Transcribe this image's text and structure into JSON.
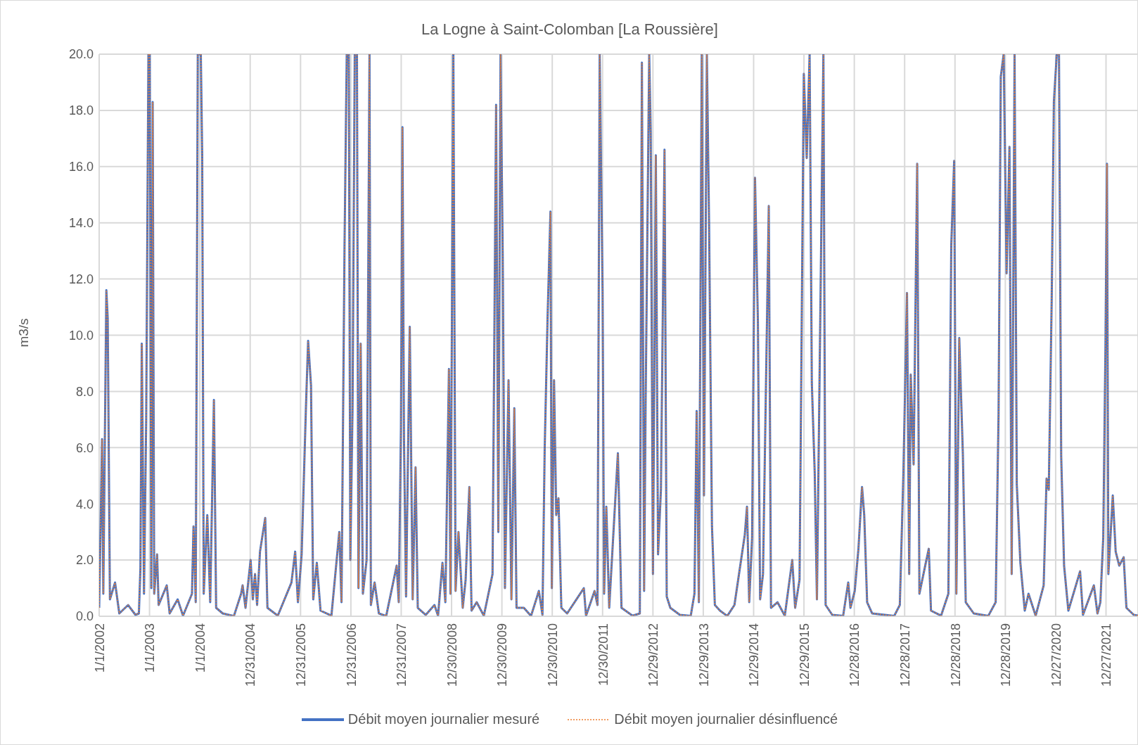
{
  "chart_data": {
    "type": "line",
    "title": "La Logne à Saint-Colomban [La Roussière]",
    "ylabel": "m3/s",
    "x": [
      "2002-01-01",
      "2002-01-22",
      "2002-01-31",
      "2002-02-22",
      "2002-03-04",
      "2002-03-20",
      "2002-04-26",
      "2002-05-27",
      "2002-07-30",
      "2002-09-21",
      "2002-10-16",
      "2002-10-27",
      "2002-11-06",
      "2002-11-22",
      "2002-12-08",
      "2002-12-24",
      "2003-01-03",
      "2003-01-14",
      "2003-01-24",
      "2003-02-04",
      "2003-02-25",
      "2003-03-08",
      "2003-05-06",
      "2003-05-27",
      "2003-07-24",
      "2003-09-01",
      "2003-11-05",
      "2003-11-16",
      "2003-12-02",
      "2003-12-17",
      "2004-01-08",
      "2004-01-18",
      "2004-01-29",
      "2004-02-24",
      "2004-03-16",
      "2004-04-12",
      "2004-04-28",
      "2004-06-15",
      "2004-09-04",
      "2004-10-26",
      "2004-11-06",
      "2004-11-27",
      "2005-01-03",
      "2005-01-19",
      "2005-02-04",
      "2005-02-19",
      "2005-03-12",
      "2005-04-19",
      "2005-05-05",
      "2005-07-19",
      "2005-10-26",
      "2005-11-22",
      "2005-12-12",
      "2006-01-08",
      "2006-02-08",
      "2006-02-24",
      "2006-03-17",
      "2006-04-02",
      "2006-04-28",
      "2006-05-25",
      "2006-08-12",
      "2006-10-08",
      "2006-10-24",
      "2006-11-15",
      "2006-12-01",
      "2006-12-16",
      "2006-12-27",
      "2007-01-12",
      "2007-01-28",
      "2007-02-13",
      "2007-02-24",
      "2007-03-12",
      "2007-03-28",
      "2007-04-24",
      "2007-05-15",
      "2007-05-25",
      "2007-06-21",
      "2007-07-22",
      "2007-09-13",
      "2007-11-28",
      "2007-12-13",
      "2007-12-29",
      "2008-01-09",
      "2008-01-20",
      "2008-02-04",
      "2008-03-02",
      "2008-03-23",
      "2008-04-13",
      "2008-04-29",
      "2008-06-26",
      "2008-08-28",
      "2008-09-23",
      "2008-10-25",
      "2008-11-15",
      "2008-12-11",
      "2008-12-22",
      "2009-01-12",
      "2009-01-28",
      "2009-02-18",
      "2009-03-21",
      "2009-04-11",
      "2009-05-08",
      "2009-05-24",
      "2009-06-30",
      "2009-08-21",
      "2009-10-23",
      "2009-11-18",
      "2009-12-04",
      "2009-12-20",
      "2010-01-05",
      "2010-01-21",
      "2010-02-16",
      "2010-03-09",
      "2010-03-30",
      "2010-04-15",
      "2010-06-07",
      "2010-07-29",
      "2010-09-24",
      "2010-10-20",
      "2010-11-05",
      "2010-11-26",
      "2010-12-17",
      "2010-12-27",
      "2011-01-12",
      "2011-01-28",
      "2011-02-13",
      "2011-03-06",
      "2011-04-17",
      "2011-08-16",
      "2011-09-01",
      "2011-11-02",
      "2011-11-23",
      "2011-12-09",
      "2011-12-30",
      "2012-01-10",
      "2012-01-26",
      "2012-02-16",
      "2012-04-19",
      "2012-04-30",
      "2012-05-15",
      "2012-08-03",
      "2012-09-25",
      "2012-10-10",
      "2012-10-26",
      "2012-11-06",
      "2012-12-02",
      "2012-12-13",
      "2012-12-29",
      "2013-01-19",
      "2013-02-04",
      "2013-02-25",
      "2013-03-23",
      "2013-04-08",
      "2013-05-04",
      "2013-07-12",
      "2013-09-29",
      "2013-10-26",
      "2013-11-11",
      "2013-11-27",
      "2013-12-18",
      "2014-01-03",
      "2014-01-24",
      "2014-02-09",
      "2014-03-02",
      "2014-03-23",
      "2014-04-29",
      "2014-06-21",
      "2014-08-12",
      "2014-10-26",
      "2014-11-11",
      "2014-11-27",
      "2014-12-18",
      "2015-01-08",
      "2015-01-29",
      "2015-02-14",
      "2015-03-07",
      "2015-04-18",
      "2015-05-04",
      "2015-06-20",
      "2015-08-12",
      "2015-10-05",
      "2015-10-26",
      "2015-11-27",
      "2015-12-28",
      "2016-01-18",
      "2016-02-08",
      "2016-02-24",
      "2016-03-16",
      "2016-04-01",
      "2016-05-18",
      "2016-06-03",
      "2016-07-21",
      "2016-10-08",
      "2016-11-14",
      "2016-11-30",
      "2016-12-31",
      "2017-01-27",
      "2017-02-22",
      "2017-03-10",
      "2017-03-31",
      "2017-05-07",
      "2017-10-13",
      "2017-11-23",
      "2017-12-19",
      "2018-01-14",
      "2018-01-30",
      "2018-02-10",
      "2018-03-03",
      "2018-03-29",
      "2018-04-14",
      "2018-05-26",
      "2018-06-21",
      "2018-07-07",
      "2018-09-18",
      "2018-11-10",
      "2018-12-01",
      "2018-12-22",
      "2019-01-07",
      "2019-01-28",
      "2019-02-23",
      "2019-03-16",
      "2019-05-13",
      "2019-08-26",
      "2019-10-19",
      "2019-11-09",
      "2019-11-25",
      "2019-12-16",
      "2020-01-06",
      "2020-01-27",
      "2020-02-12",
      "2020-03-04",
      "2020-03-20",
      "2020-04-15",
      "2020-05-17",
      "2020-06-13",
      "2020-08-04",
      "2020-10-01",
      "2020-10-22",
      "2020-11-07",
      "2020-11-28",
      "2020-12-14",
      "2021-01-04",
      "2021-01-20",
      "2021-02-05",
      "2021-02-26",
      "2021-03-29",
      "2021-06-22",
      "2021-07-13",
      "2021-09-30",
      "2021-10-26",
      "2021-11-16",
      "2021-12-07",
      "2021-12-23",
      "2022-01-03",
      "2022-01-13",
      "2022-02-14",
      "2022-03-07",
      "2022-04-02",
      "2022-05-04",
      "2022-05-24",
      "2022-07-16",
      "2022-08-21"
    ],
    "series": [
      {
        "name": "Débit moyen journalier mesuré",
        "color": "#4472c4",
        "line_style": "solid",
        "values": [
          0.3,
          6.3,
          0.8,
          11.6,
          10.6,
          0.6,
          1.2,
          0.1,
          0.4,
          0.05,
          0.1,
          1.7,
          9.7,
          0.8,
          7.0,
          20,
          20,
          1.0,
          18.3,
          0.8,
          2.2,
          0.4,
          1.1,
          0.1,
          0.6,
          0.02,
          0.8,
          3.2,
          0.5,
          20,
          20,
          16.4,
          0.8,
          3.6,
          0.5,
          7.7,
          0.3,
          0.1,
          0.01,
          0.8,
          1.1,
          0.3,
          2.0,
          0.6,
          1.5,
          0.4,
          2.3,
          3.5,
          0.3,
          0.02,
          1.2,
          2.3,
          0.5,
          2.2,
          7.4,
          9.8,
          8.2,
          0.6,
          1.9,
          0.2,
          0.02,
          3.0,
          0.5,
          13.2,
          20,
          20,
          2.0,
          7.4,
          20,
          20,
          1.0,
          9.7,
          0.8,
          2.0,
          20,
          0.4,
          1.2,
          0.1,
          0.01,
          1.8,
          0.5,
          6.7,
          17.4,
          6.3,
          0.7,
          10.3,
          0.6,
          5.3,
          0.3,
          0.05,
          0.4,
          0.02,
          1.9,
          0.5,
          8.8,
          0.8,
          20,
          0.9,
          3.0,
          0.3,
          1.3,
          4.6,
          0.2,
          0.5,
          0.02,
          1.5,
          18.2,
          3.0,
          20,
          12.8,
          1.0,
          8.4,
          0.6,
          7.4,
          0.3,
          0.3,
          0.01,
          0.9,
          0.05,
          5.9,
          10.6,
          14.4,
          1.0,
          8.4,
          3.6,
          4.2,
          0.3,
          0.1,
          1.0,
          0.02,
          0.9,
          0.4,
          20,
          11.6,
          0.8,
          3.9,
          0.3,
          5.8,
          3.5,
          0.3,
          0.02,
          0.1,
          19.7,
          0.9,
          7.6,
          20,
          17.2,
          1.5,
          16.4,
          2.2,
          4.5,
          16.6,
          0.7,
          0.3,
          0.05,
          0.01,
          0.8,
          7.3,
          0.5,
          20,
          4.3,
          20,
          14.0,
          3.2,
          0.4,
          0.2,
          0.01,
          0.4,
          2.9,
          3.9,
          0.5,
          2.8,
          15.6,
          10.5,
          0.6,
          1.5,
          14.6,
          0.3,
          0.5,
          0.02,
          2.0,
          0.3,
          1.3,
          19.3,
          16.3,
          20,
          8.3,
          5.1,
          0.6,
          20,
          0.4,
          0.05,
          0.01,
          1.2,
          0.3,
          0.9,
          2.4,
          4.6,
          3.6,
          0.5,
          0.1,
          0.01,
          0.4,
          5.1,
          11.5,
          1.5,
          8.6,
          5.4,
          16.1,
          0.8,
          1.8,
          2.4,
          0.2,
          0.02,
          0.8,
          13.2,
          16.2,
          0.8,
          9.9,
          5.8,
          0.5,
          0.1,
          0.01,
          0.5,
          7.2,
          19.2,
          20,
          12.2,
          16.7,
          1.5,
          20,
          4.7,
          1.9,
          0.2,
          0.8,
          0.02,
          1.1,
          4.9,
          4.5,
          11.2,
          18.3,
          20,
          20,
          5.7,
          1.8,
          0.2,
          1.6,
          0.05,
          1.1,
          0.1,
          0.5,
          2.8,
          9.6,
          16.1,
          1.5,
          4.3,
          2.3,
          1.8,
          2.1,
          0.3,
          0.05,
          0.02
        ]
      },
      {
        "name": "Débit moyen journalier désinfluencé",
        "color": "#ed7d31",
        "line_style": "dotted",
        "values": [
          0.3,
          6.3,
          0.8,
          11.6,
          10.6,
          0.6,
          1.2,
          0.1,
          0.4,
          0.05,
          0.1,
          1.7,
          9.7,
          0.8,
          7.0,
          20,
          20,
          1.0,
          18.3,
          0.8,
          2.2,
          0.4,
          1.1,
          0.1,
          0.6,
          0.02,
          0.8,
          3.2,
          0.5,
          20,
          20,
          16.4,
          0.8,
          3.6,
          0.5,
          7.7,
          0.3,
          0.1,
          0.01,
          0.8,
          1.1,
          0.3,
          2.0,
          0.6,
          1.5,
          0.4,
          2.3,
          3.5,
          0.3,
          0.02,
          1.2,
          2.3,
          0.5,
          2.2,
          7.4,
          9.8,
          8.2,
          0.6,
          1.9,
          0.2,
          0.02,
          3.0,
          0.5,
          13.2,
          20,
          20,
          2.0,
          7.4,
          20,
          20,
          1.0,
          9.7,
          0.8,
          2.0,
          20,
          0.4,
          1.2,
          0.1,
          0.01,
          1.8,
          0.5,
          6.7,
          17.4,
          6.3,
          0.7,
          10.3,
          0.6,
          5.3,
          0.3,
          0.05,
          0.4,
          0.02,
          1.9,
          0.5,
          8.8,
          0.8,
          20,
          0.9,
          3.0,
          0.3,
          1.3,
          4.6,
          0.2,
          0.5,
          0.02,
          1.5,
          18.2,
          3.0,
          20,
          12.8,
          1.0,
          8.4,
          0.6,
          7.4,
          0.3,
          0.3,
          0.01,
          0.9,
          0.05,
          5.9,
          10.6,
          14.4,
          1.0,
          8.4,
          3.6,
          4.2,
          0.3,
          0.1,
          1.0,
          0.02,
          0.9,
          0.4,
          20,
          11.6,
          0.8,
          3.9,
          0.3,
          5.8,
          3.5,
          0.3,
          0.02,
          0.1,
          19.7,
          0.9,
          7.6,
          20,
          17.2,
          1.5,
          16.4,
          2.2,
          4.5,
          16.6,
          0.7,
          0.3,
          0.05,
          0.01,
          0.8,
          7.3,
          0.5,
          20,
          4.3,
          20,
          14.0,
          3.2,
          0.4,
          0.2,
          0.01,
          0.4,
          2.9,
          3.9,
          0.5,
          2.8,
          15.6,
          10.5,
          0.6,
          1.5,
          14.6,
          0.3,
          0.5,
          0.02,
          2.0,
          0.3,
          1.3,
          19.3,
          16.3,
          20,
          8.3,
          5.1,
          0.6,
          20,
          0.4,
          0.05,
          0.01,
          1.2,
          0.3,
          0.9,
          2.4,
          4.6,
          3.6,
          0.5,
          0.1,
          0.01,
          0.4,
          5.1,
          11.5,
          1.5,
          8.6,
          5.4,
          16.1,
          0.8,
          1.8,
          2.4,
          0.2,
          0.02,
          0.8,
          13.2,
          16.2,
          0.8,
          9.9,
          5.8,
          0.5,
          0.1,
          0.01,
          0.5,
          7.2,
          19.2,
          20,
          12.2,
          16.7,
          1.5,
          20,
          4.7,
          1.9,
          0.2,
          0.8,
          0.02,
          1.1,
          4.9,
          4.5,
          11.2,
          18.3,
          20,
          20,
          5.7,
          1.8,
          0.2,
          1.6,
          0.05,
          1.1,
          0.1,
          0.5,
          2.8,
          9.6,
          16.1,
          1.5,
          4.3,
          2.3,
          1.8,
          2.1,
          0.3,
          0.05,
          0.02
        ]
      }
    ],
    "xlim": [
      "2002-01-01",
      "2022-08-21"
    ],
    "xticks": [
      {
        "value": "2002-01-01",
        "label": "1/1/2002"
      },
      {
        "value": "2003-01-01",
        "label": "1/1/2003"
      },
      {
        "value": "2004-01-01",
        "label": "1/1/2004"
      },
      {
        "value": "2004-12-31",
        "label": "12/31/2004"
      },
      {
        "value": "2005-12-31",
        "label": "12/31/2005"
      },
      {
        "value": "2006-12-31",
        "label": "12/31/2006"
      },
      {
        "value": "2007-12-31",
        "label": "12/31/2007"
      },
      {
        "value": "2008-12-30",
        "label": "12/30/2008"
      },
      {
        "value": "2009-12-30",
        "label": "12/30/2009"
      },
      {
        "value": "2010-12-30",
        "label": "12/30/2010"
      },
      {
        "value": "2011-12-30",
        "label": "12/30/2011"
      },
      {
        "value": "2012-12-29",
        "label": "12/29/2012"
      },
      {
        "value": "2013-12-29",
        "label": "12/29/2013"
      },
      {
        "value": "2014-12-29",
        "label": "12/29/2014"
      },
      {
        "value": "2015-12-29",
        "label": "12/29/2015"
      },
      {
        "value": "2016-12-28",
        "label": "12/28/2016"
      },
      {
        "value": "2017-12-28",
        "label": "12/28/2017"
      },
      {
        "value": "2018-12-28",
        "label": "12/28/2018"
      },
      {
        "value": "2019-12-28",
        "label": "12/28/2019"
      },
      {
        "value": "2020-12-27",
        "label": "12/27/2020"
      },
      {
        "value": "2021-12-27",
        "label": "12/27/2021"
      }
    ],
    "ylim": [
      0,
      20
    ],
    "yticks": [
      {
        "value": 0,
        "label": "0.0"
      },
      {
        "value": 2,
        "label": "2.0"
      },
      {
        "value": 4,
        "label": "4.0"
      },
      {
        "value": 6,
        "label": "6.0"
      },
      {
        "value": 8,
        "label": "8.0"
      },
      {
        "value": 10,
        "label": "10.0"
      },
      {
        "value": 12,
        "label": "12.0"
      },
      {
        "value": 14,
        "label": "14.0"
      },
      {
        "value": 16,
        "label": "16.0"
      },
      {
        "value": 18,
        "label": "18.0"
      },
      {
        "value": 20,
        "label": "20.0"
      }
    ],
    "grid": true,
    "legend": "bottom",
    "marker": "none"
  }
}
